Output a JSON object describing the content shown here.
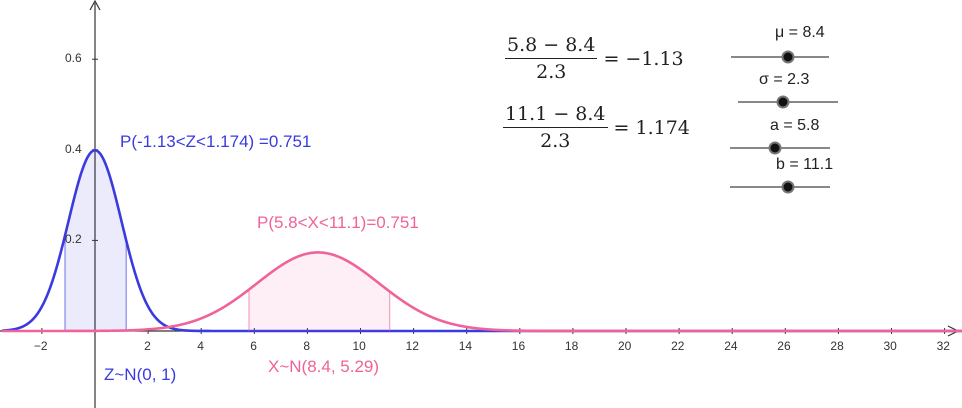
{
  "chart_data": {
    "type": "line",
    "x_ticks": [
      "−2",
      "2",
      "4",
      "6",
      "8",
      "10",
      "12",
      "14",
      "16",
      "18",
      "20",
      "22",
      "24",
      "26",
      "28",
      "30",
      "32"
    ],
    "y_ticks": [
      "0.2",
      "0.4",
      "0.6"
    ],
    "xlim": [
      -3.5,
      33
    ],
    "ylim": [
      0,
      0.72
    ],
    "series": [
      {
        "name": "Z~N(0, 1)",
        "mean": 0,
        "sd": 1,
        "shade_from": -1.13,
        "shade_to": 1.174,
        "color": "#3a3ae0"
      },
      {
        "name": "X~N(8.4, 5.29)",
        "mean": 8.4,
        "sd": 2.3,
        "shade_from": 5.8,
        "shade_to": 11.1,
        "color": "#f0639a"
      }
    ],
    "annotations": {
      "z_prob": "P(-1.13<Z<1.174) =0.751",
      "x_prob": "P(5.8<X<11.1)=0.751",
      "z_dist": "Z~N(0, 1)",
      "x_dist": "X~N(8.4, 5.29)"
    }
  },
  "formulas": [
    {
      "numerator": "5.8 − 8.4",
      "denominator": "2.3",
      "result": "= −1.13"
    },
    {
      "numerator": "11.1 − 8.4",
      "denominator": "2.3",
      "result": "= 1.174"
    }
  ],
  "sliders": [
    {
      "label": "μ = 8.4",
      "value": 8.4,
      "fraction": 0.58
    },
    {
      "label": "σ = 2.3",
      "value": 2.3,
      "fraction": 0.45
    },
    {
      "label": "a = 5.8",
      "value": 5.8,
      "fraction": 0.45
    },
    {
      "label": "b = 11.1",
      "value": 11.1,
      "fraction": 0.58
    }
  ]
}
